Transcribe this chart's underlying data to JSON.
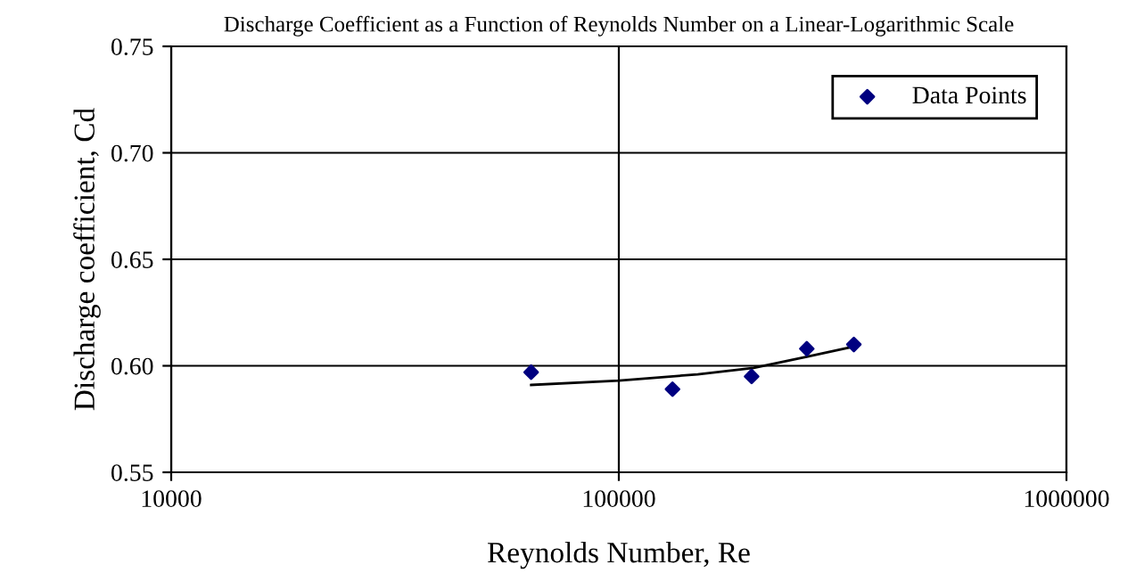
{
  "chart_data": {
    "type": "scatter",
    "title": "Discharge Coefficient as a Function of Reynolds Number on a Linear-Logarithmic Scale",
    "xlabel": "Reynolds Number, Re",
    "ylabel": "Discharge coefficient, Cd",
    "series": [
      {
        "name": "Data Points",
        "color": "#000080",
        "marker": "diamond",
        "x": [
          63700,
          131800,
          198000,
          263000,
          335000
        ],
        "values": [
          0.597,
          0.589,
          0.595,
          0.608,
          0.61
        ]
      },
      {
        "type": "line",
        "color": "#000000",
        "x": [
          63700,
          100000,
          150000,
          200000,
          260000,
          335000
        ],
        "values": [
          0.591,
          0.593,
          0.596,
          0.599,
          0.604,
          0.609
        ]
      }
    ],
    "log": "x",
    "xlim": [
      10000,
      1000000
    ],
    "xticks": [
      10000,
      100000,
      1000000
    ],
    "ylim": [
      0.55,
      0.75
    ],
    "yticks": [
      {
        "value": 0.55,
        "label": "0.55"
      },
      {
        "value": 0.6,
        "label": "0.60"
      },
      {
        "value": 0.65,
        "label": "0.65"
      },
      {
        "value": 0.7,
        "label": "0.70"
      },
      {
        "value": 0.75,
        "label": "0.75"
      }
    ],
    "grid": true,
    "legend": "top right"
  }
}
